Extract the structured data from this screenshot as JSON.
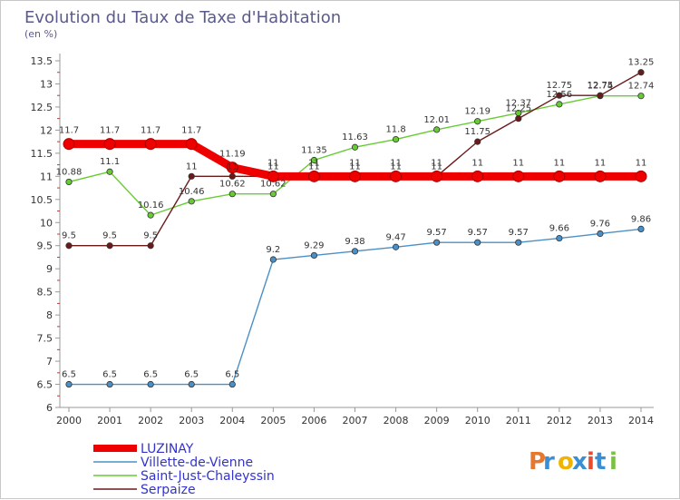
{
  "chart_data": {
    "type": "line",
    "title": "Evolution du Taux de Taxe d'Habitation",
    "subtitle": "(en %)",
    "xlabel": "",
    "ylabel": "",
    "ylim": [
      6,
      13.5
    ],
    "yticks": [
      "6",
      "6.5",
      "7",
      "7.5",
      "8",
      "8.5",
      "9",
      "9.5",
      "10",
      "10.5",
      "11",
      "11.5",
      "12",
      "12.5",
      "13",
      "13.5"
    ],
    "categories": [
      "2000",
      "2001",
      "2002",
      "2003",
      "2004",
      "2005",
      "2006",
      "2007",
      "2008",
      "2009",
      "2010",
      "2011",
      "2012",
      "2013",
      "2014"
    ],
    "grid": false,
    "legend_position": "bottom-left",
    "series": [
      {
        "name": "LUZINAY",
        "color": "#ee0000",
        "values": [
          11.7,
          11.7,
          11.7,
          11.7,
          11.19,
          11,
          11,
          11,
          11,
          11,
          11,
          11,
          11,
          11,
          11
        ]
      },
      {
        "name": "Villette-de-Vienne",
        "color": "#4a90c8",
        "values": [
          6.5,
          6.5,
          6.5,
          6.5,
          6.5,
          9.2,
          9.29,
          9.38,
          9.47,
          9.57,
          9.57,
          9.57,
          9.66,
          9.76,
          9.86
        ]
      },
      {
        "name": "Saint-Just-Chaleyssin",
        "color": "#66cc33",
        "values": [
          10.88,
          11.1,
          10.16,
          10.46,
          10.62,
          10.62,
          11.35,
          11.63,
          11.8,
          12.01,
          12.19,
          12.37,
          12.56,
          12.74,
          12.74
        ]
      },
      {
        "name": "Serpaize",
        "color": "#6b1a1a",
        "values": [
          9.5,
          9.5,
          9.5,
          11,
          11,
          11,
          11,
          11,
          11,
          11,
          11.75,
          12.25,
          12.75,
          12.75,
          13.25
        ]
      }
    ],
    "point_labels": [
      [
        "11.7",
        "11.7",
        "11.7",
        "11.7",
        "11.19",
        "11",
        "11",
        "11",
        "11",
        "11",
        "11",
        "11",
        "11",
        "11",
        "11"
      ],
      [
        "6.5",
        "6.5",
        "6.5",
        "6.5",
        "6.5",
        "9.2",
        "9.29",
        "9.38",
        "9.47",
        "9.57",
        "9.57",
        "9.57",
        "9.66",
        "9.76",
        "9.86"
      ],
      [
        "10.88",
        "11.1",
        "10.16",
        "10.46",
        "10.62",
        "10.62",
        "11.35",
        "11.63",
        "11.8",
        "12.01",
        "12.19",
        "12.37",
        "12.56",
        "12.74",
        "12.74"
      ],
      [
        "9.5",
        "9.5",
        "9.5",
        "11",
        "11",
        "11",
        "11",
        "11",
        "11",
        "11",
        "11.75",
        "12.25",
        "12.75",
        "12.75",
        "13.25"
      ]
    ]
  },
  "legend": {
    "items": [
      {
        "label": "LUZINAY"
      },
      {
        "label": "Villette-de-Vienne"
      },
      {
        "label": "Saint-Just-Chaleyssin"
      },
      {
        "label": "Serpaize"
      }
    ]
  },
  "logo": {
    "text": "Proxiti",
    "colors": [
      "#e8772e",
      "#3a8fd4",
      "#f0b400",
      "#3a8fd4",
      "#e84b2e",
      "#3a8fd4",
      "#7ac143"
    ]
  }
}
